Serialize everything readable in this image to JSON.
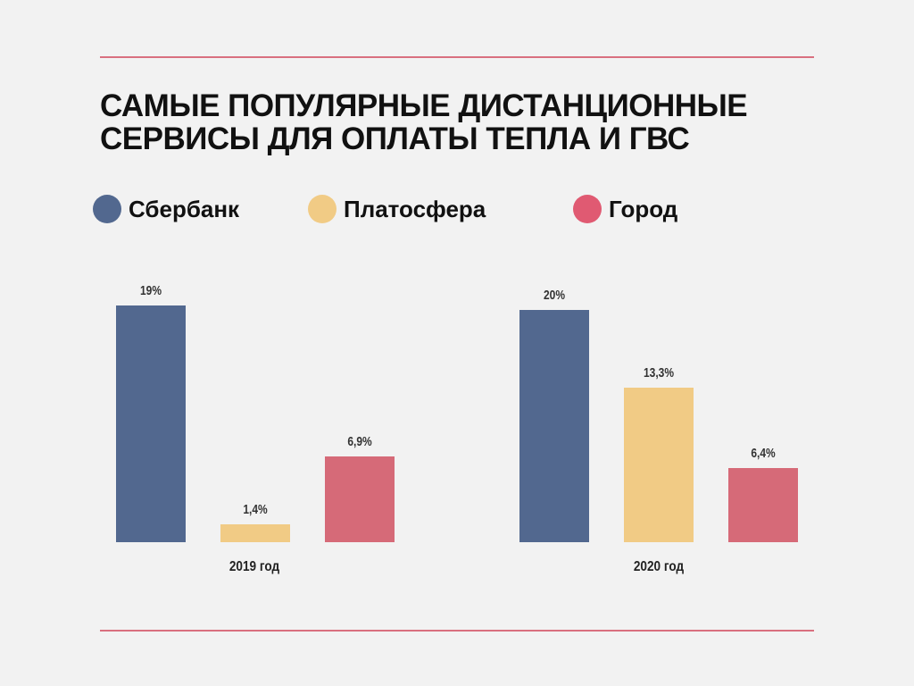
{
  "chart_data": {
    "type": "bar",
    "title": "САМЫЕ ПОПУЛЯРНЫЕ ДИСТАНЦИОННЫЕ СЕРВИСЫ ДЛЯ ОПЛАТЫ ТЕПЛА И ГВС",
    "title_lines": [
      "САМЫЕ ПОПУЛЯРНЫЕ ДИСТАНЦИОННЫЕ",
      "СЕРВИСЫ ДЛЯ ОПЛАТЫ ТЕПЛА И ГВС"
    ],
    "categories": [
      "2019 год",
      "2020 год"
    ],
    "legend_position": "top-left",
    "series": [
      {
        "name": "Сбербанк",
        "color": "#52688f",
        "values": [
          19,
          20
        ],
        "labels": [
          "19%",
          "20%"
        ]
      },
      {
        "name": "Платосфера",
        "color": "#f1cb85",
        "values": [
          1.4,
          13.3
        ],
        "labels": [
          "1,4%",
          "13,3%"
        ]
      },
      {
        "name": "Город",
        "color": "#d66a78",
        "values": [
          6.9,
          6.4
        ],
        "labels": [
          "6,9%",
          "6,4%"
        ]
      }
    ],
    "group_ylim_max": [
      19,
      20
    ],
    "xlabel": "",
    "ylabel": ""
  }
}
